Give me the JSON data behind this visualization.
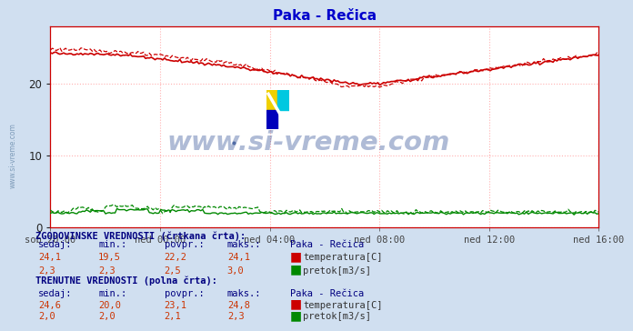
{
  "title": "Paka - Rečica",
  "title_color": "#0000cc",
  "bg_color": "#d0dff0",
  "plot_bg_color": "#ffffff",
  "grid_color": "#ffb0b0",
  "grid_color_minor": "#ffe8e8",
  "x_labels": [
    "sob 20:00",
    "ned 00:00",
    "ned 04:00",
    "ned 08:00",
    "ned 12:00",
    "ned 16:00"
  ],
  "x_ticks_norm": [
    0.0,
    0.2,
    0.4,
    0.6,
    0.8,
    1.0
  ],
  "ylim": [
    0,
    28
  ],
  "yticks": [
    0,
    10,
    20
  ],
  "temp_hist_color": "#cc0000",
  "temp_curr_color": "#cc0000",
  "flow_hist_color": "#008800",
  "flow_curr_color": "#008800",
  "watermark_text": "www.si-vreme.com",
  "watermark_color": "#1a3d8a",
  "watermark_alpha": 0.35,
  "hist_label_section": "ZGODOVINSKE VREDNOSTI (črtkana črta):",
  "curr_label_section": "TRENUTNE VREDNOSTI (polna črta):",
  "col_headers": [
    "sedaj:",
    "min.:",
    "povpr.:",
    "maks.:",
    "Paka - Rečica"
  ],
  "hist_temp_vals": [
    "24,1",
    "19,5",
    "22,2",
    "24,1"
  ],
  "hist_flow_vals": [
    "2,3",
    "2,3",
    "2,5",
    "3,0"
  ],
  "curr_temp_vals": [
    "24,6",
    "20,0",
    "23,1",
    "24,8"
  ],
  "curr_flow_vals": [
    "2,0",
    "2,0",
    "2,1",
    "2,3"
  ],
  "label_temp": "temperatura[C]",
  "label_flow": "pretok[m3/s]",
  "n_points": 289,
  "left_label": "www.si-vreme.com"
}
